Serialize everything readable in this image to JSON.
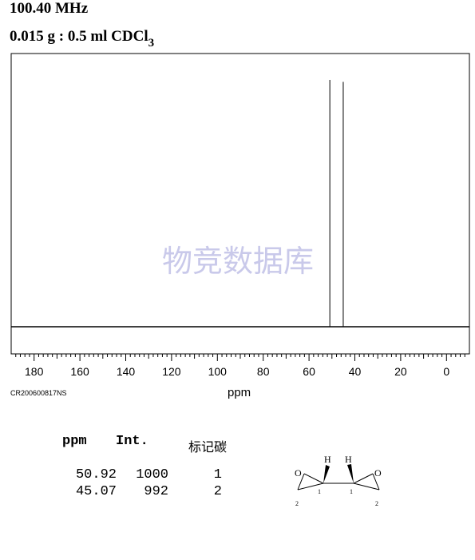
{
  "header": {
    "frequency": "100.40 MHz",
    "sample_main": "0.015 g : 0.5 ml CDCl",
    "sample_sub": "3"
  },
  "watermark": "物竞数据库",
  "sample_code": "CR200600817NS",
  "table": {
    "headers": [
      "ppm",
      "Int.",
      "标记碳"
    ],
    "rows": [
      {
        "ppm": "50.92",
        "int": "1000",
        "carbon": "1"
      },
      {
        "ppm": "45.07",
        "int": "992",
        "carbon": "2"
      }
    ]
  },
  "molecule": {
    "atoms": [
      "O",
      "O",
      "H",
      "H",
      "1",
      "1",
      "2",
      "2"
    ]
  },
  "chart_data": {
    "type": "line",
    "xlabel": "ppm",
    "xlim": [
      190,
      -10
    ],
    "x_reversed": true,
    "ylim": [
      0,
      1050
    ],
    "x_ticks": [
      180,
      160,
      140,
      120,
      100,
      80,
      60,
      40,
      20,
      0
    ],
    "peaks": [
      {
        "ppm": 50.92,
        "intensity": 1000
      },
      {
        "ppm": 45.07,
        "intensity": 992
      }
    ],
    "colors": {
      "frame": "#000000",
      "watermark": "#c9c9ea"
    }
  }
}
